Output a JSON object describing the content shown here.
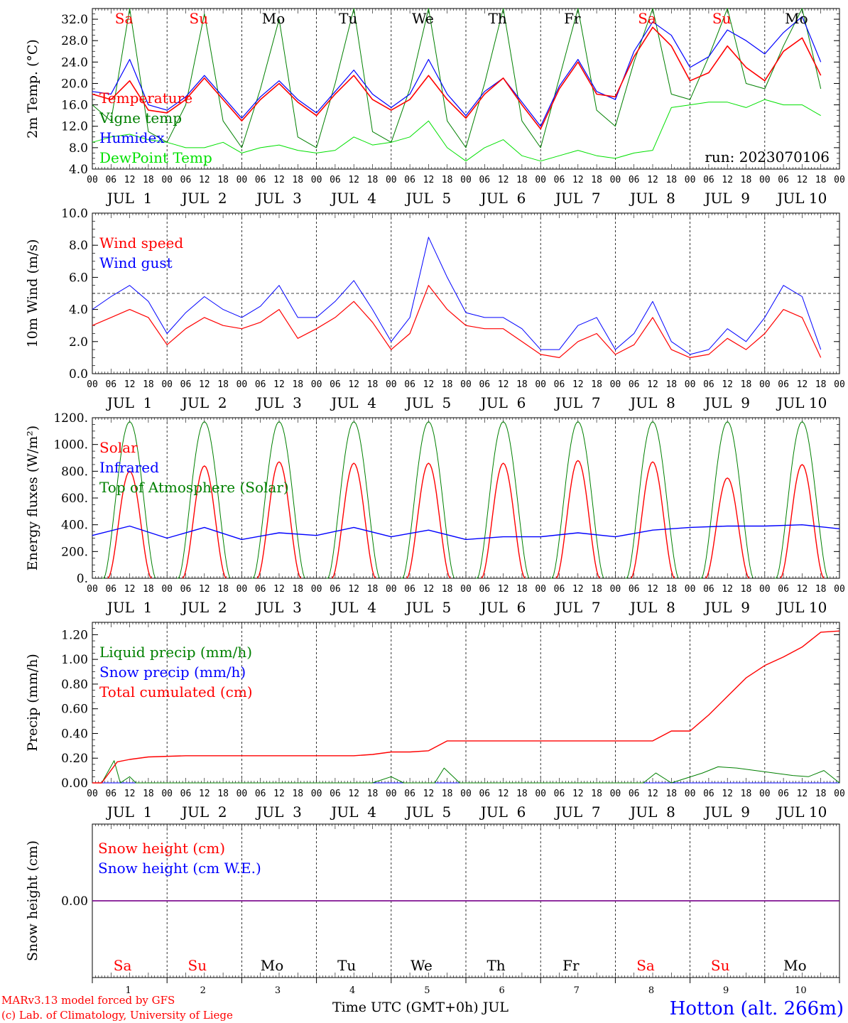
{
  "run_label": "run: 2023070106",
  "station": "Hotton (alt. 266m)",
  "footer": {
    "line1": "MARv3.13 model forced by GFS",
    "line2": "(c) Lab. of Climatology, University of Liege",
    "xlabel": "Time UTC (GMT+0h) JUL"
  },
  "colors": {
    "red": "#ff0000",
    "green": "#008000",
    "blue": "#0000ff",
    "lightgreen": "#00e000",
    "purple": "#800080"
  },
  "days": [
    {
      "label": "Sa",
      "weekend": true,
      "date": "1"
    },
    {
      "label": "Su",
      "weekend": true,
      "date": "2"
    },
    {
      "label": "Mo",
      "weekend": false,
      "date": "3"
    },
    {
      "label": "Tu",
      "weekend": false,
      "date": "4"
    },
    {
      "label": "We",
      "weekend": false,
      "date": "5"
    },
    {
      "label": "Th",
      "weekend": false,
      "date": "6"
    },
    {
      "label": "Fr",
      "weekend": false,
      "date": "7"
    },
    {
      "label": "Sa",
      "weekend": true,
      "date": "8"
    },
    {
      "label": "Su",
      "weekend": true,
      "date": "9"
    },
    {
      "label": "Mo",
      "weekend": false,
      "date": "10"
    }
  ],
  "hour_ticks": [
    "00",
    "06",
    "12",
    "18"
  ],
  "final_hour_tick": "00",
  "date_labels": [
    "JUL  1",
    "JUL  2",
    "JUL  3",
    "JUL  4",
    "JUL  5",
    "JUL  6",
    "JUL  7",
    "JUL  8",
    "JUL  9",
    "JUL 10"
  ],
  "chart_data": [
    {
      "type": "line",
      "ylabel": "2m Temp. (°C)",
      "ylim": [
        4,
        34
      ],
      "yticks": [
        "4.0",
        "8.0",
        "12.0",
        "16.0",
        "20.0",
        "24.0",
        "28.0",
        "32.0"
      ],
      "ytick_values": [
        4,
        8,
        12,
        16,
        20,
        24,
        28,
        32
      ],
      "x_unit": "hours since JUL 1 00 UTC",
      "series": [
        {
          "name": "Temperature",
          "color": "red",
          "x": [
            0,
            6,
            12,
            18,
            24,
            30,
            36,
            42,
            48,
            54,
            60,
            66,
            72,
            78,
            84,
            90,
            96,
            102,
            108,
            114,
            120,
            126,
            132,
            138,
            144,
            150,
            156,
            162,
            168,
            174,
            180,
            186,
            192,
            198,
            204,
            210,
            216,
            222,
            228,
            234
          ],
          "y": [
            18,
            17,
            20.5,
            15,
            14.5,
            17,
            21,
            17,
            13,
            17,
            20,
            16.5,
            14,
            18,
            21.5,
            17,
            15,
            17,
            21.5,
            17,
            13.5,
            18,
            21,
            16,
            11.5,
            19,
            24,
            18,
            17.5,
            25,
            30.5,
            27,
            20.5,
            22,
            27,
            23,
            20.5,
            26,
            28.5,
            21.5
          ]
        },
        {
          "name": "Vigne temp",
          "color": "green",
          "x": [
            0,
            6,
            12,
            18,
            24,
            30,
            36,
            42,
            48,
            54,
            60,
            66,
            72,
            78,
            84,
            90,
            96,
            102,
            108,
            114,
            120,
            126,
            132,
            138,
            144,
            150,
            156,
            162,
            168,
            174,
            180,
            186,
            192,
            198,
            204,
            210,
            216,
            222,
            228,
            234
          ],
          "y": [
            16,
            13,
            34,
            11,
            9,
            16,
            33,
            13,
            8,
            19,
            32,
            10,
            8,
            20,
            34,
            11,
            9,
            19,
            34,
            13,
            8,
            20,
            34,
            13,
            8,
            21,
            34,
            15,
            12,
            24,
            34,
            18,
            17,
            25,
            34,
            20,
            19,
            27,
            34,
            19
          ]
        },
        {
          "name": "Humidex",
          "color": "blue",
          "x": [
            0,
            6,
            12,
            18,
            24,
            30,
            36,
            42,
            48,
            54,
            60,
            66,
            72,
            78,
            84,
            90,
            96,
            102,
            108,
            114,
            120,
            126,
            132,
            138,
            144,
            150,
            156,
            162,
            168,
            174,
            180,
            186,
            192,
            198,
            204,
            210,
            216,
            222,
            228,
            234
          ],
          "y": [
            18.5,
            18,
            24.5,
            16,
            15,
            17.5,
            21.5,
            17.5,
            13.5,
            17.5,
            20.5,
            17,
            14.5,
            18.5,
            22.5,
            18,
            15.5,
            18,
            24.5,
            18,
            14,
            18.5,
            21,
            16.5,
            12,
            19.5,
            24.5,
            18.5,
            17,
            26,
            31.5,
            29,
            23,
            25,
            30,
            28,
            25.5,
            29.5,
            32.5,
            24
          ]
        },
        {
          "name": "DewPoint Temp",
          "color": "lightgreen",
          "x": [
            0,
            6,
            12,
            18,
            24,
            30,
            36,
            42,
            48,
            54,
            60,
            66,
            72,
            78,
            84,
            90,
            96,
            102,
            108,
            114,
            120,
            126,
            132,
            138,
            144,
            150,
            156,
            162,
            168,
            174,
            180,
            186,
            192,
            198,
            204,
            210,
            216,
            222,
            228,
            234
          ],
          "y": [
            9,
            10,
            10.5,
            9.5,
            9,
            8,
            8,
            9,
            7,
            8,
            8.5,
            7.5,
            7,
            7.5,
            10,
            8.5,
            9,
            10,
            13,
            8,
            5.5,
            8,
            9.5,
            6.5,
            5.5,
            6.5,
            7.5,
            6.5,
            6,
            7,
            7.5,
            15.5,
            16,
            16.5,
            16.5,
            15.5,
            17,
            16,
            16,
            14
          ]
        }
      ],
      "legend_placement": "top-left",
      "grid": false
    },
    {
      "type": "line",
      "ylabel": "10m Wind (m/s)",
      "ylim": [
        0,
        10
      ],
      "yticks": [
        "0.0",
        "2.0",
        "4.0",
        "6.0",
        "8.0",
        "10.0"
      ],
      "ytick_values": [
        0,
        2,
        4,
        6,
        8,
        10
      ],
      "reference_line": 5,
      "x_unit": "hours since JUL 1 00 UTC",
      "series": [
        {
          "name": "Wind speed",
          "color": "red",
          "x": [
            0,
            6,
            12,
            18,
            24,
            30,
            36,
            42,
            48,
            54,
            60,
            66,
            72,
            78,
            84,
            90,
            96,
            102,
            108,
            114,
            120,
            126,
            132,
            138,
            144,
            150,
            156,
            162,
            168,
            174,
            180,
            186,
            192,
            198,
            204,
            210,
            216,
            222,
            228,
            234
          ],
          "y": [
            3,
            3.5,
            4,
            3.5,
            1.8,
            2.8,
            3.5,
            3,
            2.8,
            3.2,
            4,
            2.2,
            2.8,
            3.5,
            4.5,
            3.2,
            1.5,
            2.5,
            5.5,
            4,
            3,
            2.8,
            2.8,
            2,
            1.2,
            1,
            2,
            2.5,
            1.2,
            1.8,
            3.5,
            1.5,
            1,
            1.2,
            2.2,
            1.5,
            2.5,
            4,
            3.5,
            1
          ]
        },
        {
          "name": "Wind gust",
          "color": "blue",
          "x": [
            0,
            6,
            12,
            18,
            24,
            30,
            36,
            42,
            48,
            54,
            60,
            66,
            72,
            78,
            84,
            90,
            96,
            102,
            108,
            114,
            120,
            126,
            132,
            138,
            144,
            150,
            156,
            162,
            168,
            174,
            180,
            186,
            192,
            198,
            204,
            210,
            216,
            222,
            228,
            234
          ],
          "y": [
            4,
            4.8,
            5.5,
            4.5,
            2.5,
            3.8,
            4.8,
            4,
            3.5,
            4.2,
            5.5,
            3.5,
            3.5,
            4.5,
            5.8,
            4,
            2,
            3.5,
            8.5,
            6,
            3.8,
            3.5,
            3.5,
            2.8,
            1.5,
            1.5,
            3,
            3.5,
            1.5,
            2.5,
            4.5,
            2,
            1.2,
            1.5,
            2.8,
            2,
            3.5,
            5.5,
            4.8,
            1.5
          ]
        }
      ],
      "legend_placement": "top-left",
      "grid": false
    },
    {
      "type": "line",
      "ylabel": "Energy fluxes (W/m²)",
      "ylim": [
        0,
        1200
      ],
      "yticks": [
        "0.",
        "200.",
        "400.",
        "600.",
        "800.",
        "1000.",
        "1200."
      ],
      "ytick_values": [
        0,
        200,
        400,
        600,
        800,
        1000,
        1200
      ],
      "x_unit": "hours since JUL 1 00 UTC",
      "series": [
        {
          "name": "Solar",
          "color": "red",
          "daily_peaks": [
            800,
            840,
            870,
            860,
            860,
            860,
            880,
            870,
            750,
            850
          ]
        },
        {
          "name": "Infrared",
          "color": "blue",
          "x": [
            0,
            12,
            24,
            36,
            48,
            60,
            72,
            84,
            96,
            108,
            120,
            132,
            144,
            156,
            168,
            180,
            192,
            204,
            216,
            228,
            240
          ],
          "y": [
            320,
            390,
            300,
            380,
            290,
            340,
            320,
            380,
            310,
            360,
            290,
            310,
            310,
            340,
            310,
            360,
            380,
            390,
            390,
            400,
            370
          ]
        },
        {
          "name": "Top of Atmosphere (Solar)",
          "color": "green",
          "daily_peak": 1170,
          "sunrise_hour": 3.7,
          "sunset_hour": 20.3
        }
      ],
      "legend_placement": "top-left",
      "grid": false
    },
    {
      "type": "line",
      "ylabel": "Precip (mm/h)",
      "ylim": [
        0,
        1.3
      ],
      "yticks": [
        "0.00",
        "0.20",
        "0.40",
        "0.60",
        "0.80",
        "1.00",
        "1.20"
      ],
      "ytick_values": [
        0,
        0.2,
        0.4,
        0.6,
        0.8,
        1.0,
        1.2
      ],
      "x_unit": "hours since JUL 1 00 UTC",
      "series": [
        {
          "name": "Liquid precip (mm/h)",
          "color": "green",
          "x": [
            0,
            3,
            7,
            9,
            12,
            14,
            20,
            90,
            96,
            100,
            110,
            113,
            118,
            177,
            181,
            186,
            196,
            201,
            207,
            213,
            219,
            225,
            230,
            235,
            240
          ],
          "y": [
            0,
            0,
            0.18,
            0,
            0.05,
            0,
            0,
            0,
            0.05,
            0,
            0,
            0.12,
            0,
            0,
            0.08,
            0,
            0.08,
            0.13,
            0.12,
            0.1,
            0.08,
            0.06,
            0.05,
            0.1,
            0
          ]
        },
        {
          "name": "Snow precip (mm/h)",
          "color": "blue",
          "x": [
            0,
            240
          ],
          "y": [
            0,
            0
          ]
        },
        {
          "name": "Total cumulated (cm)",
          "color": "red",
          "x": [
            0,
            3,
            8,
            12,
            18,
            30,
            36,
            84,
            90,
            96,
            102,
            108,
            114,
            120,
            180,
            186,
            192,
            198,
            204,
            210,
            216,
            222,
            228,
            234,
            240
          ],
          "y": [
            0,
            0,
            0.17,
            0.19,
            0.21,
            0.22,
            0.22,
            0.22,
            0.23,
            0.25,
            0.25,
            0.26,
            0.34,
            0.34,
            0.34,
            0.42,
            0.42,
            0.55,
            0.7,
            0.85,
            0.95,
            1.02,
            1.1,
            1.22,
            1.23
          ]
        }
      ],
      "legend_placement": "top-left",
      "grid": false
    },
    {
      "type": "line",
      "ylabel": "Snow height (cm)",
      "ylim": [
        -1,
        1
      ],
      "yticks": [
        "0.00"
      ],
      "ytick_values": [
        0
      ],
      "x_unit": "hours since JUL 1 00 UTC",
      "series": [
        {
          "name": "Snow height (cm)",
          "color": "red",
          "x": [
            0,
            240
          ],
          "y": [
            0,
            0
          ]
        },
        {
          "name": "Snow height (cm W.E.)",
          "color": "blue",
          "x": [
            0,
            240
          ],
          "y": [
            0,
            0
          ]
        }
      ],
      "legend_placement": "top-left",
      "grid": false
    }
  ]
}
